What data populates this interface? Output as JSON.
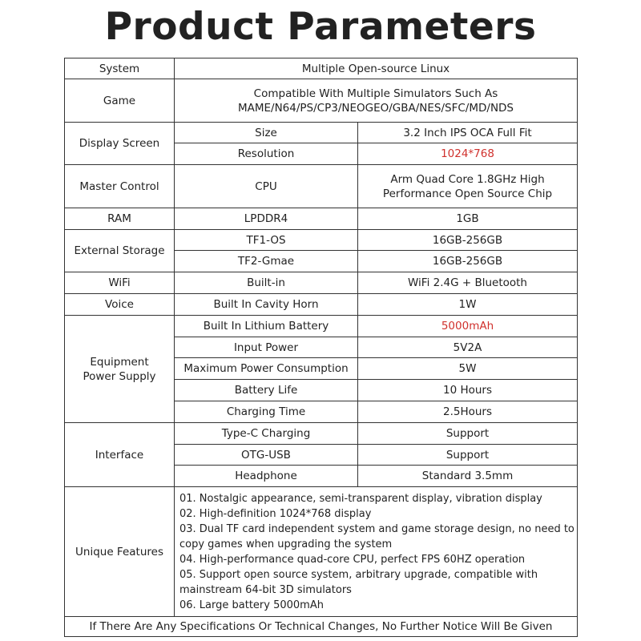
{
  "title": "Product Parameters",
  "rows": {
    "system": {
      "label": "System",
      "value": "Multiple Open-source Linux"
    },
    "game": {
      "label": "Game",
      "value_line1": "Compatible With Multiple Simulators Such As",
      "value_line2": "MAME/N64/PS/CP3/NEOGEO/GBA/NES/SFC/MD/NDS"
    },
    "display": {
      "label": "Display Screen",
      "size_label": "Size",
      "size_value": "3.2 Inch IPS OCA Full Fit",
      "resolution_label": "Resolution",
      "resolution_value": "1024*768"
    },
    "master": {
      "label": "Master Control",
      "sub": "CPU",
      "value_line1": "Arm Quad Core 1.8GHz High",
      "value_line2": "Performance Open Source Chip"
    },
    "ram": {
      "label": "RAM",
      "sub": "LPDDR4",
      "value": "1GB"
    },
    "storage": {
      "label": "External Storage",
      "tf1_label": "TF1-OS",
      "tf1_value": "16GB-256GB",
      "tf2_label": "TF2-Gmae",
      "tf2_value": "16GB-256GB"
    },
    "wifi": {
      "label": "WiFi",
      "sub": "Built-in",
      "value": "WiFi 2.4G + Bluetooth"
    },
    "voice": {
      "label": "Voice",
      "sub": "Built In Cavity Horn",
      "value": "1W"
    },
    "power": {
      "label_line1": "Equipment",
      "label_line2": "Power Supply",
      "items": [
        {
          "label": "Built In Lithium Battery",
          "value": "5000mAh"
        },
        {
          "label": "Input Power",
          "value": "5V2A"
        },
        {
          "label": "Maximum Power Consumption",
          "value": "5W"
        },
        {
          "label": "Battery Life",
          "value": "10 Hours"
        },
        {
          "label": "Charging Time",
          "value": "2.5Hours"
        }
      ]
    },
    "interface": {
      "label": "Interface",
      "items": [
        {
          "label": "Type-C Charging",
          "value": "Support"
        },
        {
          "label": "OTG-USB",
          "value": "Support"
        },
        {
          "label": "Headphone",
          "value": "Standard 3.5mm"
        }
      ]
    },
    "features": {
      "label": "Unique Features",
      "lines": [
        "01. Nostalgic appearance, semi-transparent display, vibration display",
        "02. High-definition 1024*768 display",
        "03. Dual TF card independent system and game storage design, no need to",
        "copy games when upgrading the system",
        "04. High-performance quad-core CPU, perfect FPS 60HZ operation",
        "05. Support open source system, arbitrary upgrade, compatible with",
        "mainstream 64-bit 3D simulators",
        "06. Large battery 5000mAh"
      ]
    }
  },
  "footer": "If There Are Any Specifications Or Technical Changes, No Further Notice Will Be Given",
  "colors": {
    "highlight": "#d0312d",
    "text": "#222222",
    "border": "#333333"
  }
}
